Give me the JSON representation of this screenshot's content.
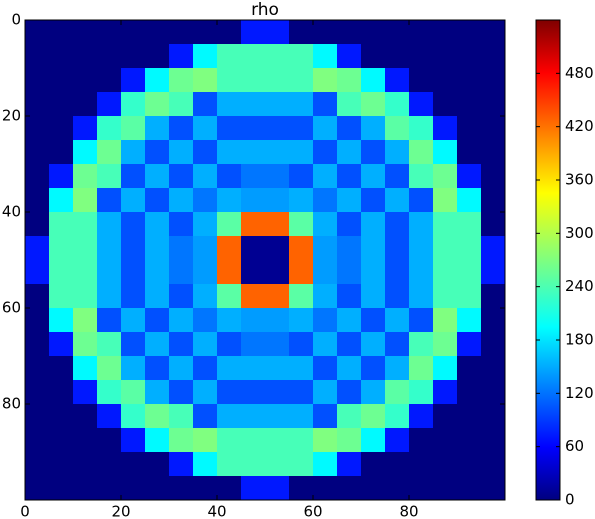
{
  "chart_data": {
    "type": "heatmap",
    "title": "rho",
    "colormap": "jet",
    "xlim": [
      0,
      100
    ],
    "ylim": [
      100,
      0
    ],
    "xticks": [
      0,
      20,
      40,
      60,
      80
    ],
    "yticks": [
      0,
      20,
      40,
      60,
      80
    ],
    "zlim": [
      0,
      540
    ],
    "zticks": [
      0,
      60,
      120,
      180,
      240,
      300,
      360,
      420,
      480
    ],
    "z": [
      [
        0,
        0,
        0,
        0,
        0,
        0,
        0,
        0,
        0,
        80,
        80,
        0,
        0,
        0,
        0,
        0,
        0,
        0,
        0,
        0
      ],
      [
        0,
        0,
        0,
        0,
        0,
        0,
        80,
        200,
        240,
        240,
        240,
        240,
        200,
        80,
        0,
        0,
        0,
        0,
        0,
        0
      ],
      [
        0,
        0,
        0,
        0,
        80,
        200,
        260,
        270,
        240,
        240,
        240,
        240,
        270,
        260,
        200,
        80,
        0,
        0,
        0,
        0
      ],
      [
        0,
        0,
        0,
        80,
        230,
        260,
        240,
        110,
        160,
        160,
        160,
        160,
        110,
        240,
        260,
        230,
        80,
        0,
        0,
        0
      ],
      [
        0,
        0,
        80,
        230,
        250,
        160,
        110,
        160,
        110,
        110,
        110,
        110,
        160,
        110,
        160,
        250,
        230,
        80,
        0,
        0
      ],
      [
        0,
        0,
        200,
        260,
        160,
        110,
        160,
        110,
        160,
        160,
        160,
        160,
        110,
        160,
        110,
        160,
        260,
        200,
        0,
        0
      ],
      [
        0,
        80,
        260,
        240,
        110,
        160,
        110,
        160,
        110,
        130,
        130,
        110,
        160,
        110,
        160,
        110,
        240,
        260,
        80,
        0
      ],
      [
        0,
        200,
        270,
        110,
        160,
        110,
        160,
        130,
        160,
        150,
        150,
        160,
        130,
        160,
        110,
        160,
        110,
        270,
        200,
        0
      ],
      [
        0,
        240,
        240,
        160,
        110,
        160,
        110,
        160,
        250,
        420,
        420,
        250,
        160,
        110,
        160,
        110,
        160,
        240,
        240,
        0
      ],
      [
        80,
        240,
        240,
        160,
        110,
        160,
        130,
        150,
        420,
        10,
        10,
        420,
        150,
        130,
        160,
        110,
        160,
        240,
        240,
        80
      ],
      [
        80,
        240,
        240,
        160,
        110,
        160,
        130,
        150,
        420,
        10,
        10,
        420,
        150,
        130,
        160,
        110,
        160,
        240,
        240,
        80
      ],
      [
        0,
        240,
        240,
        160,
        110,
        160,
        110,
        160,
        250,
        420,
        420,
        250,
        160,
        110,
        160,
        110,
        160,
        240,
        240,
        0
      ],
      [
        0,
        200,
        270,
        110,
        160,
        110,
        160,
        130,
        160,
        150,
        150,
        160,
        130,
        160,
        110,
        160,
        110,
        270,
        200,
        0
      ],
      [
        0,
        80,
        260,
        240,
        110,
        160,
        110,
        160,
        110,
        130,
        130,
        110,
        160,
        110,
        160,
        110,
        240,
        260,
        80,
        0
      ],
      [
        0,
        0,
        200,
        260,
        160,
        110,
        160,
        110,
        160,
        160,
        160,
        160,
        110,
        160,
        110,
        160,
        260,
        200,
        0,
        0
      ],
      [
        0,
        0,
        80,
        230,
        250,
        160,
        110,
        160,
        110,
        110,
        110,
        110,
        160,
        110,
        160,
        250,
        230,
        80,
        0,
        0
      ],
      [
        0,
        0,
        0,
        80,
        230,
        260,
        240,
        110,
        160,
        160,
        160,
        160,
        110,
        240,
        260,
        230,
        80,
        0,
        0,
        0
      ],
      [
        0,
        0,
        0,
        0,
        80,
        200,
        260,
        270,
        240,
        240,
        240,
        240,
        270,
        260,
        200,
        80,
        0,
        0,
        0,
        0
      ],
      [
        0,
        0,
        0,
        0,
        0,
        0,
        80,
        200,
        240,
        240,
        240,
        240,
        200,
        80,
        0,
        0,
        0,
        0,
        0,
        0
      ],
      [
        0,
        0,
        0,
        0,
        0,
        0,
        0,
        0,
        0,
        80,
        80,
        0,
        0,
        0,
        0,
        0,
        0,
        0,
        0,
        0
      ]
    ]
  }
}
